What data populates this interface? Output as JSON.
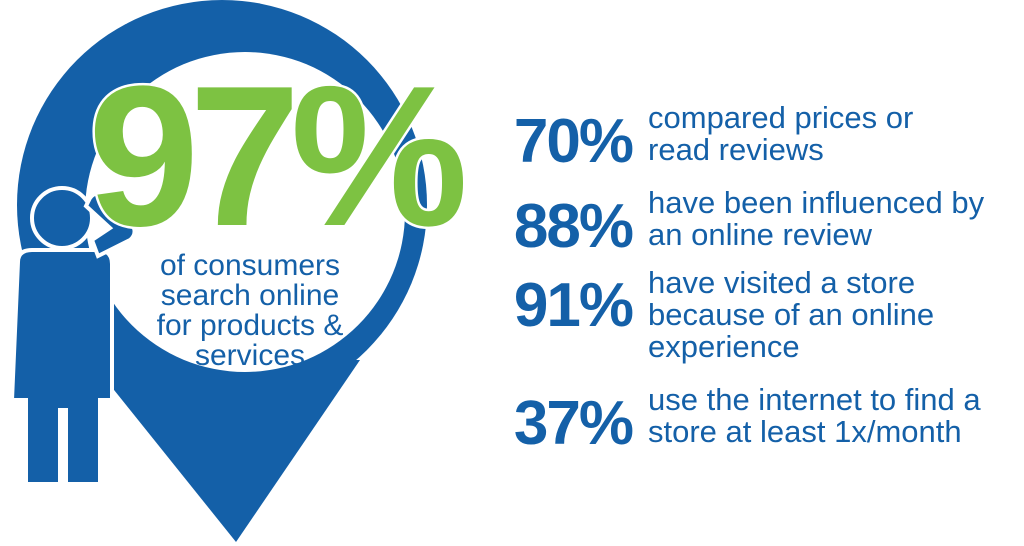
{
  "headline": {
    "value": "97%",
    "caption": [
      "of consumers",
      "search online",
      "for products &",
      "services"
    ]
  },
  "stats": [
    {
      "value": "70%",
      "text": [
        "compared prices or",
        "read reviews"
      ]
    },
    {
      "value": "88%",
      "text": [
        "have been influenced by",
        "an online review"
      ]
    },
    {
      "value": "91%",
      "text": [
        "have visited a store",
        "because of an online",
        "experience"
      ]
    },
    {
      "value": "37%",
      "text": [
        "use the internet to find a",
        "store at least 1x/month"
      ]
    }
  ]
}
